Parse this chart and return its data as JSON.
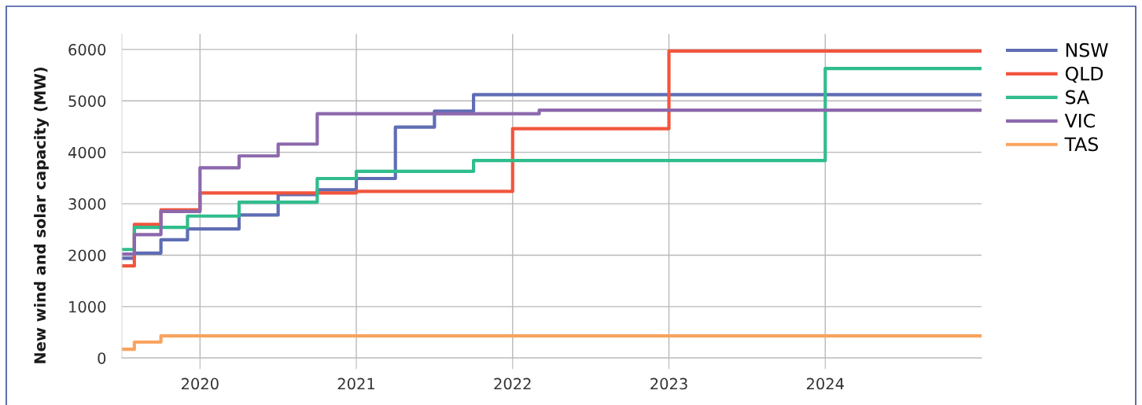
{
  "chart_data": {
    "type": "step",
    "ylabel": "New wind and solar capacity (MW)",
    "xlim": [
      2019.5,
      2025
    ],
    "xticks": [
      2020,
      2021,
      2022,
      2023,
      2024
    ],
    "ylim": [
      0,
      6300
    ],
    "yticks": [
      0,
      1000,
      2000,
      3000,
      4000,
      5000,
      6000
    ],
    "grid": true,
    "legend": "right",
    "series": [
      {
        "name": "NSW",
        "color": "#5f6db4",
        "x": [
          2019.5,
          2019.58,
          2019.75,
          2019.92,
          2020.25,
          2020.5,
          2020.75,
          2021,
          2021.25,
          2021.5,
          2021.75,
          2025
        ],
        "values": [
          1940,
          2040,
          2300,
          2510,
          2780,
          3180,
          3270,
          3490,
          4490,
          4800,
          5120,
          5120
        ]
      },
      {
        "name": "QLD",
        "color": "#f1553d",
        "x": [
          2019.5,
          2019.58,
          2019.75,
          2020,
          2021,
          2022,
          2023,
          2025
        ],
        "values": [
          1790,
          2600,
          2880,
          3210,
          3240,
          4460,
          5970,
          5970
        ]
      },
      {
        "name": "SA",
        "color": "#30bd8c",
        "x": [
          2019.5,
          2019.58,
          2019.92,
          2020.25,
          2020.75,
          2021,
          2021.75,
          2024,
          2025
        ],
        "values": [
          2110,
          2540,
          2760,
          3030,
          3490,
          3630,
          3840,
          5630,
          5630
        ]
      },
      {
        "name": "VIC",
        "color": "#8c68ad",
        "x": [
          2019.5,
          2019.58,
          2019.75,
          2020,
          2020.25,
          2020.5,
          2020.75,
          2022.17,
          2025
        ],
        "values": [
          2020,
          2400,
          2850,
          3700,
          3930,
          4160,
          4750,
          4820,
          4820
        ]
      },
      {
        "name": "TAS",
        "color": "#f8a35e",
        "x": [
          2019.5,
          2019.58,
          2019.75,
          2025
        ],
        "values": [
          170,
          310,
          430,
          430
        ]
      }
    ]
  }
}
